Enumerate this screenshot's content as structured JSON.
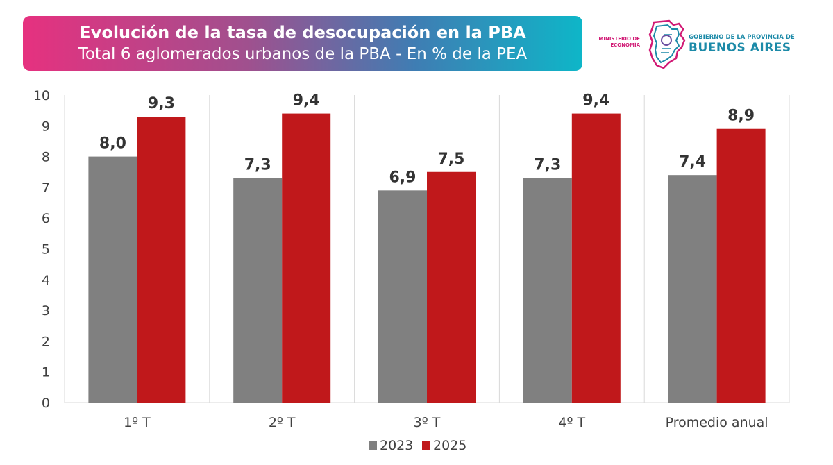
{
  "header": {
    "title": "Evolución de la tasa de desocupación en la PBA",
    "subtitle": "Total 6 aglomerados urbanos de la PBA - En % de la PEA"
  },
  "logo": {
    "ministerio_line1": "MINISTERIO DE",
    "ministerio_line2": "ECONOMÍA",
    "gobierno": "GOBIERNO DE LA PROVINCIA DE",
    "provincia": "BUENOS AIRES"
  },
  "chart_data": {
    "type": "bar",
    "categories": [
      "1º T",
      "2º T",
      "3º T",
      "4º T",
      "Promedio anual"
    ],
    "series": [
      {
        "name": "2023",
        "color": "#808080",
        "values": [
          8.0,
          7.3,
          6.9,
          7.3,
          7.4
        ],
        "labels": [
          "8,0",
          "7,3",
          "6,9",
          "7,3",
          "7,4"
        ]
      },
      {
        "name": "2025",
        "color": "#c0181b",
        "values": [
          9.3,
          9.4,
          7.5,
          9.4,
          8.9
        ],
        "labels": [
          "9,3",
          "9,4",
          "7,5",
          "9,4",
          "8,9"
        ]
      }
    ],
    "ylim": [
      0,
      10
    ],
    "yticks": [
      "0",
      "1",
      "2",
      "3",
      "4",
      "5",
      "6",
      "7",
      "8",
      "9",
      "10"
    ],
    "legend": "bottom-center",
    "grid": "vertical category separators"
  }
}
